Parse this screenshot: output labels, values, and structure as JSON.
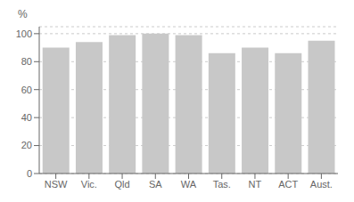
{
  "chart_data": {
    "type": "bar",
    "categories": [
      "NSW",
      "Vic.",
      "Qld",
      "SA",
      "WA",
      "Tas.",
      "NT",
      "ACT",
      "Aust."
    ],
    "values": [
      90,
      94,
      99,
      100,
      99,
      86,
      90,
      86,
      95
    ],
    "color": "#c8c8c8",
    "ylabel": "%",
    "ylim": [
      0,
      105
    ],
    "yticks": [
      0,
      20,
      40,
      60,
      80,
      100
    ],
    "grid": true
  }
}
